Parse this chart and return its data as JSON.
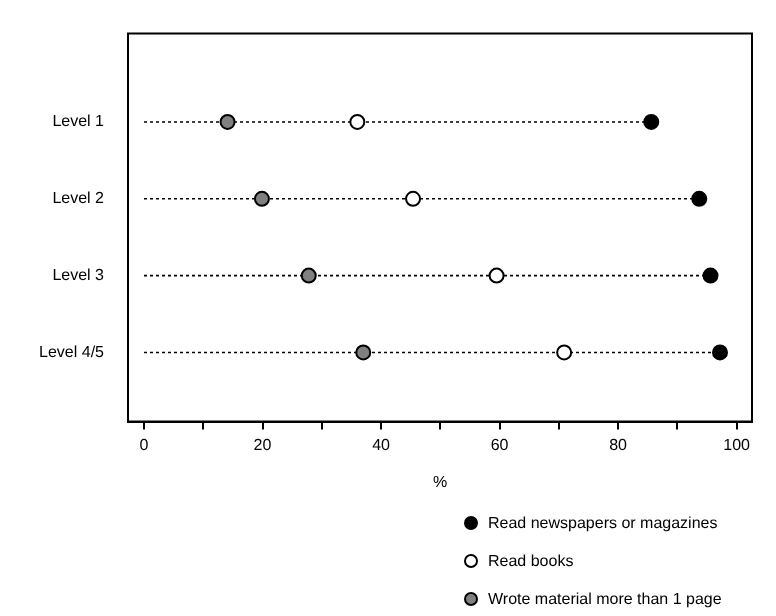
{
  "chart_data": {
    "type": "scatter",
    "orientation": "horizontal",
    "xlabel": "%",
    "categories": [
      "Level 1",
      "Level 2",
      "Level 3",
      "Level 4/5"
    ],
    "xlim": [
      -2.7,
      102.6
    ],
    "xticks": [
      0,
      {
        "value": 10,
        "label": null
      },
      20,
      {
        "value": 30,
        "label": null
      },
      40,
      {
        "value": 50,
        "label": null
      },
      60,
      {
        "value": 70,
        "label": null
      },
      80,
      {
        "value": 90,
        "label": null
      },
      100
    ],
    "marker": "circle",
    "legend": "bottom right",
    "grid": false,
    "series": [
      {
        "name": "Read newspapers or magazines",
        "color": "#000000",
        "values": [
          85.6,
          93.7,
          95.6,
          97.2
        ]
      },
      {
        "name": "Read books",
        "color": "#ffffff",
        "values": [
          36,
          45.4,
          59.5,
          70.9
        ]
      },
      {
        "name": "Wrote material more than 1 page",
        "color": "#808080",
        "values": [
          14.1,
          19.9,
          27.8,
          37
        ]
      }
    ]
  }
}
